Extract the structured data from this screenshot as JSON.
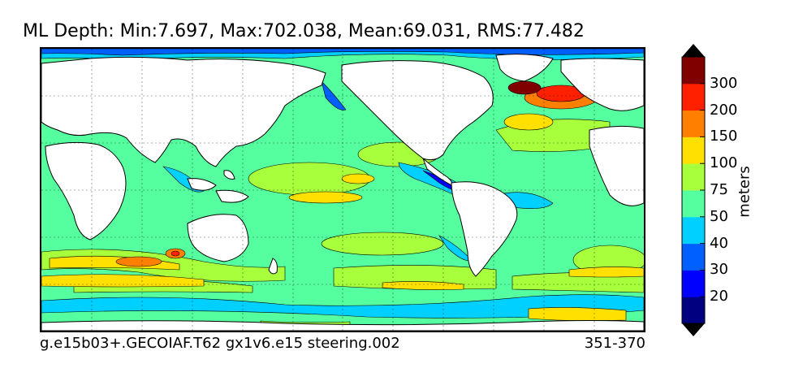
{
  "title": "ML Depth: Min:7.697, Max:702.038, Mean:69.031, RMS:77.482",
  "caption": "g.e15b03+.GECOIAF.T62 gx1v6.e15 steering.002",
  "years": "351-370",
  "colorbar": {
    "unit": "meters",
    "ticks": [
      "300",
      "200",
      "150",
      "100",
      "75",
      "50",
      "40",
      "30",
      "20"
    ],
    "colors": [
      "#000080",
      "#0000ff",
      "#0060ff",
      "#00d0ff",
      "#55ff9f",
      "#a8ff3c",
      "#ffe000",
      "#ff8000",
      "#ff2000",
      "#800000"
    ]
  }
}
